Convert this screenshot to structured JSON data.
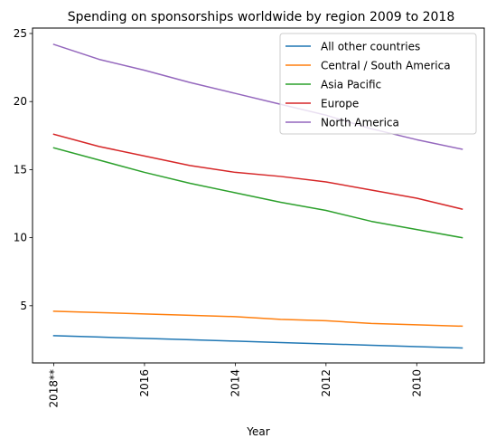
{
  "chart_data": {
    "type": "line",
    "title": "Spending on sponsorships worldwide by region 2009 to 2018",
    "xlabel": "Year",
    "ylabel": "",
    "x": [
      "2018**",
      "2017",
      "2016",
      "2015",
      "2014",
      "2013",
      "2012",
      "2011",
      "2010",
      "2009"
    ],
    "xticks": [
      "2018**",
      "2016",
      "2014",
      "2012",
      "2010"
    ],
    "xtick_indices": [
      0,
      2,
      4,
      6,
      8
    ],
    "yticks": [
      5,
      10,
      15,
      20,
      25
    ],
    "ylim": [
      0.8,
      25.4
    ],
    "legend_position": "upper-right",
    "grid": false,
    "series": [
      {
        "name": "All other countries",
        "color": "#1f77b4",
        "values": [
          2.8,
          2.7,
          2.6,
          2.5,
          2.4,
          2.3,
          2.2,
          2.1,
          2.0,
          1.9
        ]
      },
      {
        "name": "Central / South America",
        "color": "#ff7f0e",
        "values": [
          4.6,
          4.5,
          4.4,
          4.3,
          4.2,
          4.0,
          3.9,
          3.7,
          3.6,
          3.5
        ]
      },
      {
        "name": "Asia Pacific",
        "color": "#2ca02c",
        "values": [
          16.6,
          15.7,
          14.8,
          14.0,
          13.3,
          12.6,
          12.0,
          11.2,
          10.6,
          10.0
        ]
      },
      {
        "name": "Europe",
        "color": "#d62728",
        "values": [
          17.6,
          16.7,
          16.0,
          15.3,
          14.8,
          14.5,
          14.1,
          13.5,
          12.9,
          12.1
        ]
      },
      {
        "name": "North America",
        "color": "#9467bd",
        "values": [
          24.2,
          23.1,
          22.3,
          21.4,
          20.6,
          19.8,
          19.0,
          18.0,
          17.2,
          16.5
        ]
      }
    ]
  }
}
